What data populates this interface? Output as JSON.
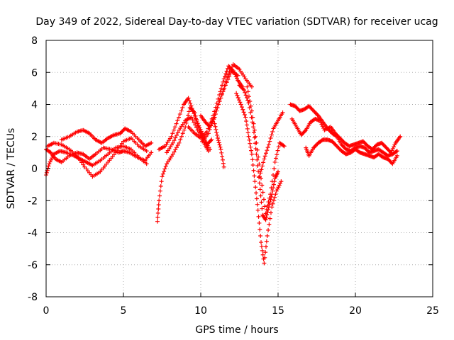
{
  "chart_data": {
    "type": "scatter",
    "title": "Day 349 of 2022, Sidereal Day-to-day VTEC variation (SDTVAR) for receiver ucag",
    "xlabel": "GPS time / hours",
    "ylabel": "SDTVAR / TECUs",
    "xlim": [
      0,
      25
    ],
    "ylim": [
      -8,
      8
    ],
    "x_ticks": [
      0,
      5,
      10,
      15,
      20,
      25
    ],
    "y_ticks": [
      -8,
      -6,
      -4,
      -2,
      0,
      2,
      4,
      6,
      8
    ],
    "grid": true,
    "legend": "none",
    "marker": "+",
    "series": [
      {
        "name": "SDTVAR",
        "color": "#ff0000",
        "segments": [
          {
            "x": [
              0.0,
              0.3,
              0.6,
              1.0,
              1.5,
              2.0,
              2.4,
              2.8,
              3.2,
              3.7,
              4.2,
              4.7,
              5.0,
              5.4,
              5.9,
              6.4,
              6.8
            ],
            "y": [
              1.2,
              1.0,
              0.6,
              0.4,
              0.8,
              1.0,
              0.9,
              0.6,
              0.9,
              1.3,
              1.2,
              1.0,
              1.1,
              1.0,
              0.7,
              0.5,
              1.0
            ]
          },
          {
            "x": [
              0.0,
              0.2,
              0.5,
              0.9,
              1.3,
              1.8,
              2.2,
              2.6,
              3.0,
              3.5,
              4.0,
              4.5,
              5.0,
              5.5,
              6.0,
              6.5
            ],
            "y": [
              -0.4,
              0.3,
              0.9,
              1.1,
              1.0,
              0.8,
              0.6,
              0.4,
              0.2,
              0.5,
              0.9,
              1.3,
              1.4,
              1.2,
              0.7,
              0.3
            ]
          },
          {
            "x": [
              0.1,
              0.5,
              1.0,
              1.5,
              2.0,
              2.5,
              3.0,
              3.5,
              4.0,
              4.5,
              5.0,
              5.5,
              6.0,
              6.5
            ],
            "y": [
              1.4,
              1.6,
              1.5,
              1.2,
              0.8,
              0.1,
              -0.5,
              -0.2,
              0.4,
              1.0,
              1.7,
              1.9,
              1.4,
              1.1
            ]
          },
          {
            "x": [
              1.0,
              1.5,
              2.0,
              2.4,
              2.8,
              3.2,
              3.6,
              4.0,
              4.4,
              4.8,
              5.1,
              5.5,
              6.0,
              6.4,
              6.8
            ],
            "y": [
              1.8,
              2.0,
              2.3,
              2.4,
              2.2,
              1.8,
              1.6,
              1.9,
              2.1,
              2.2,
              2.5,
              2.3,
              1.8,
              1.4,
              1.6
            ]
          },
          {
            "x": [
              7.2,
              7.3,
              7.5,
              7.8,
              8.2,
              8.6,
              9.0,
              9.3,
              9.6,
              9.9,
              10.2,
              10.5
            ],
            "y": [
              -3.3,
              -2.0,
              -0.5,
              0.3,
              0.9,
              1.6,
              2.6,
              3.8,
              3.5,
              2.4,
              1.6,
              1.1
            ]
          },
          {
            "x": [
              7.3,
              7.7,
              8.1,
              8.5,
              8.9,
              9.2,
              9.5,
              9.8,
              10.1,
              10.4,
              10.7
            ],
            "y": [
              1.2,
              1.4,
              2.0,
              3.0,
              4.0,
              4.4,
              3.6,
              2.8,
              2.2,
              1.5,
              1.8
            ]
          },
          {
            "x": [
              7.8,
              8.2,
              8.6,
              9.0,
              9.4,
              9.8,
              10.2,
              10.6
            ],
            "y": [
              1.0,
              1.6,
              2.4,
              3.0,
              3.2,
              2.4,
              1.8,
              1.2
            ]
          },
          {
            "x": [
              9.2,
              9.6,
              10.0,
              10.4,
              10.8,
              11.2,
              11.5,
              11.8,
              12.1,
              12.4,
              12.7
            ],
            "y": [
              2.6,
              2.2,
              1.9,
              2.3,
              3.3,
              4.6,
              5.6,
              6.4,
              6.1,
              5.5,
              5.1
            ]
          },
          {
            "x": [
              10.0,
              10.3,
              10.6,
              10.9,
              11.2,
              11.6,
              12.0,
              12.4
            ],
            "y": [
              3.3,
              2.9,
              2.6,
              3.2,
              4.2,
              5.2,
              6.1,
              5.8
            ]
          },
          {
            "x": [
              10.1,
              10.5,
              10.9,
              11.3,
              11.7,
              12.1,
              12.5,
              12.9,
              13.3
            ],
            "y": [
              1.7,
              2.2,
              3.4,
              4.4,
              5.7,
              6.5,
              6.2,
              5.6,
              5.1
            ]
          },
          {
            "x": [
              10.9,
              11.1,
              11.3,
              11.5
            ],
            "y": [
              2.8,
              1.9,
              1.2,
              0.1
            ]
          },
          {
            "x": [
              12.3,
              12.6,
              12.9,
              13.1,
              13.3,
              13.5,
              13.7,
              13.9,
              14.1,
              14.3,
              14.6,
              14.9,
              15.2
            ],
            "y": [
              4.7,
              4.0,
              3.2,
              2.0,
              0.9,
              -0.8,
              -2.6,
              -4.6,
              -5.9,
              -4.2,
              -2.4,
              -1.4,
              -0.8
            ]
          },
          {
            "x": [
              12.5,
              12.8,
              13.1,
              13.4,
              13.6,
              13.8,
              14.0,
              14.2,
              14.4,
              14.6,
              14.8,
              15.0
            ],
            "y": [
              5.2,
              4.9,
              4.1,
              2.6,
              0.9,
              -0.9,
              -2.9,
              -3.2,
              -2.4,
              -1.6,
              -0.6,
              -0.2
            ]
          },
          {
            "x": [
              13.0,
              13.3,
              13.6,
              13.9,
              14.2,
              14.5,
              14.8,
              15.1,
              15.4
            ],
            "y": [
              5.1,
              3.6,
              1.6,
              -0.6,
              -2.8,
              -1.6,
              0.4,
              1.6,
              1.4
            ]
          },
          {
            "x": [
              13.8,
              14.1,
              14.4,
              14.7,
              15.0,
              15.3
            ],
            "y": [
              -0.5,
              0.6,
              1.5,
              2.5,
              3.0,
              3.5
            ]
          },
          {
            "x": [
              15.8,
              16.1,
              16.4,
              16.7,
              17.0,
              17.3,
              17.6,
              17.9,
              18.2,
              18.5,
              18.8,
              19.1,
              19.4,
              19.7,
              20.0,
              20.3,
              20.6,
              20.9,
              21.2,
              21.5,
              21.8,
              22.1,
              22.4,
              22.7
            ],
            "y": [
              4.0,
              3.9,
              3.6,
              3.7,
              3.9,
              3.6,
              3.3,
              2.9,
              2.5,
              2.2,
              2.0,
              1.5,
              1.2,
              1.1,
              1.3,
              1.4,
              1.3,
              1.0,
              1.1,
              1.2,
              1.0,
              0.8,
              0.9,
              1.1
            ]
          },
          {
            "x": [
              15.9,
              16.2,
              16.5,
              16.8,
              17.1,
              17.4,
              17.7,
              18.0,
              18.4,
              18.7,
              19.0,
              19.3,
              19.6,
              19.9,
              20.2,
              20.5,
              20.8,
              21.1,
              21.4,
              21.7,
              22.0,
              22.3,
              22.6,
              22.9
            ],
            "y": [
              3.1,
              2.6,
              2.1,
              2.4,
              2.9,
              3.1,
              3.0,
              2.4,
              2.6,
              2.2,
              1.9,
              1.6,
              1.4,
              1.5,
              1.6,
              1.7,
              1.4,
              1.2,
              1.5,
              1.6,
              1.3,
              1.0,
              1.6,
              2.0
            ]
          },
          {
            "x": [
              16.8,
              17.0,
              17.3,
              17.6,
              17.9,
              18.2,
              18.5,
              18.8,
              19.1,
              19.4,
              19.7,
              20.0,
              20.3,
              20.6,
              20.9,
              21.2,
              21.5,
              21.8,
              22.1,
              22.4,
              22.7
            ],
            "y": [
              1.3,
              0.8,
              1.3,
              1.6,
              1.8,
              1.8,
              1.7,
              1.4,
              1.1,
              0.9,
              1.0,
              1.2,
              1.0,
              0.9,
              0.8,
              0.7,
              0.9,
              0.7,
              0.6,
              0.3,
              0.8
            ]
          }
        ]
      }
    ]
  }
}
